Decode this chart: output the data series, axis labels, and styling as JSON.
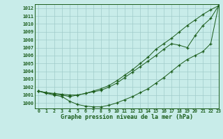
{
  "title": "Graphe pression niveau de la mer (hPa)",
  "background_color": "#c8ece9",
  "grid_color": "#a0ccca",
  "line_color": "#1a5c1a",
  "xlim": [
    -0.5,
    23
  ],
  "ylim": [
    999.3,
    1012.5
  ],
  "yticks": [
    1000,
    1001,
    1002,
    1003,
    1004,
    1005,
    1006,
    1007,
    1008,
    1009,
    1010,
    1011,
    1012
  ],
  "xticks": [
    0,
    1,
    2,
    3,
    4,
    5,
    6,
    7,
    8,
    9,
    10,
    11,
    12,
    13,
    14,
    15,
    16,
    17,
    18,
    19,
    20,
    21,
    22,
    23
  ],
  "curve_top": [
    1001.5,
    1001.3,
    1001.2,
    1001.1,
    1001.0,
    1001.0,
    1001.2,
    1001.5,
    1001.8,
    1002.2,
    1002.8,
    1003.5,
    1004.2,
    1005.0,
    1005.8,
    1006.8,
    1007.5,
    1008.2,
    1009.0,
    1009.8,
    1010.5,
    1011.2,
    1011.8,
    1012.3
  ],
  "curve_mid": [
    1001.5,
    1001.3,
    1001.1,
    1001.0,
    1000.8,
    1001.0,
    1001.2,
    1001.4,
    1001.6,
    1002.0,
    1002.5,
    1003.2,
    1003.9,
    1004.6,
    1005.3,
    1006.0,
    1006.8,
    1007.5,
    1007.3,
    1007.0,
    1008.5,
    1009.8,
    1010.7,
    1012.3
  ],
  "curve_bot": [
    1001.5,
    1001.2,
    1001.0,
    1000.8,
    1000.2,
    999.8,
    999.6,
    999.5,
    999.5,
    999.7,
    1000.0,
    1000.4,
    1000.8,
    1001.3,
    1001.8,
    1002.5,
    1003.2,
    1004.0,
    1004.8,
    1005.5,
    1006.0,
    1006.5,
    1007.5,
    1012.3
  ]
}
